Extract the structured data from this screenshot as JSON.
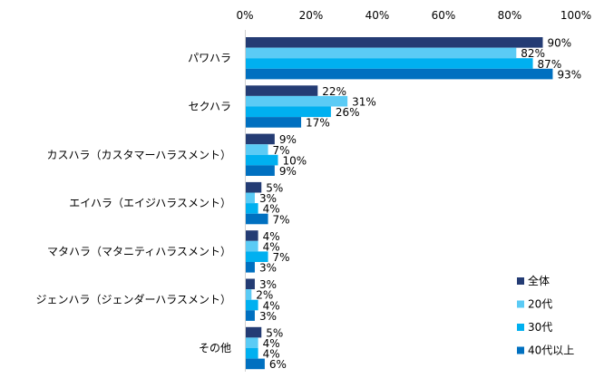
{
  "chart_data": {
    "type": "bar",
    "orientation": "horizontal",
    "title": "",
    "xlabel": "",
    "ylabel": "",
    "xlim": [
      0,
      100
    ],
    "x_ticks": [
      "0%",
      "20%",
      "40%",
      "60%",
      "80%",
      "100%"
    ],
    "x_tick_values": [
      0,
      20,
      40,
      60,
      80,
      100
    ],
    "grid": false,
    "legend_position": "bottom-right",
    "categories": [
      "パワハラ",
      "セクハラ",
      "カスハラ（カスタマーハラスメント）",
      "エイハラ（エイジハラスメント）",
      "マタハラ（マタニティハラスメント）",
      "ジェンハラ（ジェンダーハラスメント）",
      "その他"
    ],
    "series": [
      {
        "name": "全体",
        "color": "#243c74",
        "values": [
          90,
          22,
          9,
          5,
          4,
          3,
          5
        ]
      },
      {
        "name": "20代",
        "color": "#5bcbf5",
        "values": [
          82,
          31,
          7,
          3,
          4,
          2,
          4
        ]
      },
      {
        "name": "30代",
        "color": "#00b0f0",
        "values": [
          87,
          26,
          10,
          4,
          7,
          4,
          4
        ]
      },
      {
        "name": "40代以上",
        "color": "#0070c0",
        "values": [
          93,
          17,
          9,
          7,
          3,
          3,
          6
        ]
      }
    ],
    "value_suffix": "%"
  }
}
